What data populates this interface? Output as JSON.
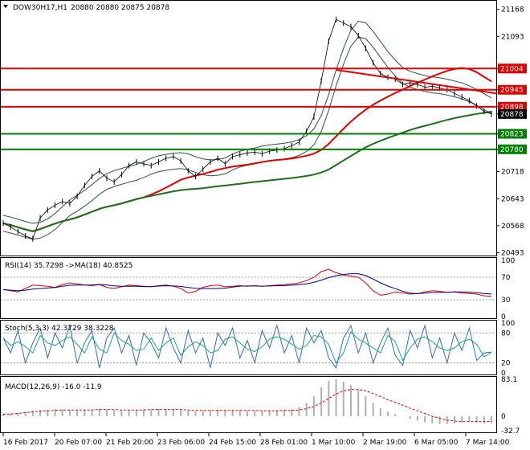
{
  "header": {
    "symbol": "DOW30H17,H1",
    "ohlc": "20880 20880 20875 20878"
  },
  "chart_data": [
    {
      "type": "line",
      "name": "price",
      "title": "DOW30H17,H1 20880 20880 20875 20878",
      "ylim": [
        20490,
        21185
      ],
      "y_ticks": [
        21168,
        21093,
        21004,
        20945,
        20898,
        20878,
        20823,
        20780,
        20718,
        20643,
        20568,
        20493
      ],
      "x_labels": [
        "16 Feb 2017",
        "20 Feb 07:00",
        "21 Feb 20:00",
        "23 Feb 06:00",
        "24 Feb 15:00",
        "28 Feb 01:00",
        "1 Mar 10:00",
        "2 Mar 19:00",
        "6 Mar 05:00",
        "7 Mar 14:00"
      ],
      "close": [
        20575,
        20565,
        20552,
        20540,
        20532,
        20590,
        20612,
        20625,
        20635,
        20630,
        20650,
        20680,
        20705,
        20720,
        20700,
        20690,
        20710,
        20735,
        20745,
        20740,
        20735,
        20745,
        20755,
        20760,
        20748,
        20720,
        20705,
        20725,
        20745,
        20755,
        20740,
        20760,
        20765,
        20770,
        20772,
        20768,
        20775,
        20778,
        20782,
        20790,
        20800,
        20830,
        20870,
        20970,
        21080,
        21140,
        21130,
        21120,
        21095,
        21060,
        21020,
        20990,
        20980,
        20975,
        20960,
        20965,
        20960,
        20952,
        20955,
        20950,
        20945,
        20935,
        20925,
        20915,
        20900,
        20885,
        20878
      ],
      "horizontal_levels": [
        {
          "value": 21004,
          "color": "#e00000"
        },
        {
          "value": 20945,
          "color": "#e00000"
        },
        {
          "value": 20898,
          "color": "#e00000"
        },
        {
          "value": 20823,
          "color": "#008000"
        },
        {
          "value": 20780,
          "color": "#008000"
        }
      ],
      "trendline": {
        "from": 21000,
        "to": 20935,
        "color": "#e00000"
      },
      "price_tags": [
        {
          "value": 21004,
          "label": "21004",
          "bg": "#e00000"
        },
        {
          "value": 20945,
          "label": "20945",
          "bg": "#e00000"
        },
        {
          "value": 20898,
          "label": "20898",
          "bg": "#e00000"
        },
        {
          "value": 20878,
          "label": "20878",
          "bg": "#000000"
        },
        {
          "value": 20823,
          "label": "20823",
          "bg": "#008000"
        },
        {
          "value": 20780,
          "label": "20780",
          "bg": "#008000"
        }
      ],
      "ma_colors": {
        "slow": "#1e6e1e",
        "mid": "#e00000",
        "bands": "#2f4f4f"
      }
    },
    {
      "type": "line",
      "name": "rsi",
      "title": "RSI(14) 35.7298 ->MA(18) 40.8525",
      "ylim": [
        0,
        100
      ],
      "y_ticks": [
        100,
        70,
        30,
        0
      ],
      "levels": [
        70,
        30
      ],
      "values": [
        48,
        46,
        44,
        50,
        56,
        55,
        54,
        52,
        57,
        60,
        58,
        56,
        55,
        57,
        52,
        50,
        53,
        56,
        55,
        54,
        53,
        55,
        56,
        54,
        50,
        42,
        45,
        52,
        55,
        56,
        53,
        54,
        55,
        54,
        55,
        54,
        55,
        56,
        57,
        58,
        60,
        64,
        70,
        80,
        84,
        78,
        74,
        72,
        70,
        60,
        46,
        38,
        40,
        44,
        42,
        40,
        41,
        44,
        46,
        45,
        43,
        44,
        42,
        41,
        40,
        37,
        36
      ],
      "colors": {
        "rsi": "#e00000",
        "ma": "#00007f"
      }
    },
    {
      "type": "line",
      "name": "stochastic",
      "title": "Stoch(5,3,3) 42.3729 38.3228",
      "ylim": [
        0,
        100
      ],
      "y_ticks": [
        100,
        80,
        20,
        0
      ],
      "levels": [
        80,
        20
      ],
      "main": [
        70,
        40,
        85,
        20,
        60,
        90,
        30,
        80,
        50,
        95,
        20,
        60,
        85,
        10,
        70,
        90,
        40,
        75,
        15,
        80,
        60,
        30,
        90,
        50,
        20,
        85,
        40,
        70,
        10,
        80,
        55,
        90,
        30,
        65,
        20,
        85,
        50,
        95,
        40,
        75,
        20,
        90,
        60,
        85,
        30,
        10,
        70,
        95,
        40,
        80,
        20,
        60,
        90,
        35,
        15,
        85,
        50,
        95,
        30,
        70,
        20,
        80,
        45,
        90,
        25,
        40,
        42
      ],
      "signal_offset": 1,
      "colors": {
        "main": "#2f6fb0",
        "signal": "#20a090"
      }
    },
    {
      "type": "bar",
      "name": "macd",
      "title": "MACD(12,26,9) -16.0 -11.9",
      "ylim": [
        -32.7,
        83.1
      ],
      "y_ticks": [
        83.1,
        0.0,
        -32.7
      ],
      "values": [
        5,
        6,
        8,
        10,
        12,
        14,
        15,
        16,
        15,
        14,
        13,
        14,
        15,
        16,
        15,
        14,
        13,
        13,
        14,
        15,
        15,
        16,
        16,
        15,
        14,
        12,
        11,
        12,
        13,
        14,
        14,
        13,
        13,
        12,
        12,
        12,
        12,
        13,
        14,
        16,
        20,
        30,
        45,
        65,
        80,
        83,
        78,
        70,
        60,
        45,
        30,
        18,
        10,
        5,
        0,
        -6,
        -10,
        -14,
        -16,
        -18,
        -18,
        -16,
        -14,
        -12,
        -14,
        -16,
        -16
      ],
      "signal": [
        4,
        5,
        6,
        8,
        10,
        11,
        12,
        13,
        14,
        14,
        14,
        14,
        14,
        15,
        15,
        15,
        14,
        14,
        14,
        14,
        15,
        15,
        15,
        15,
        15,
        14,
        13,
        13,
        13,
        13,
        13,
        13,
        13,
        13,
        13,
        12,
        12,
        12,
        13,
        13,
        14,
        17,
        22,
        30,
        40,
        50,
        57,
        60,
        60,
        57,
        51,
        44,
        37,
        31,
        25,
        18,
        12,
        6,
        0,
        -5,
        -9,
        -11,
        -12,
        -12,
        -12,
        -12,
        -11.9
      ],
      "colors": {
        "bars": "#b0b0b0",
        "signal": "#e00000"
      }
    }
  ]
}
